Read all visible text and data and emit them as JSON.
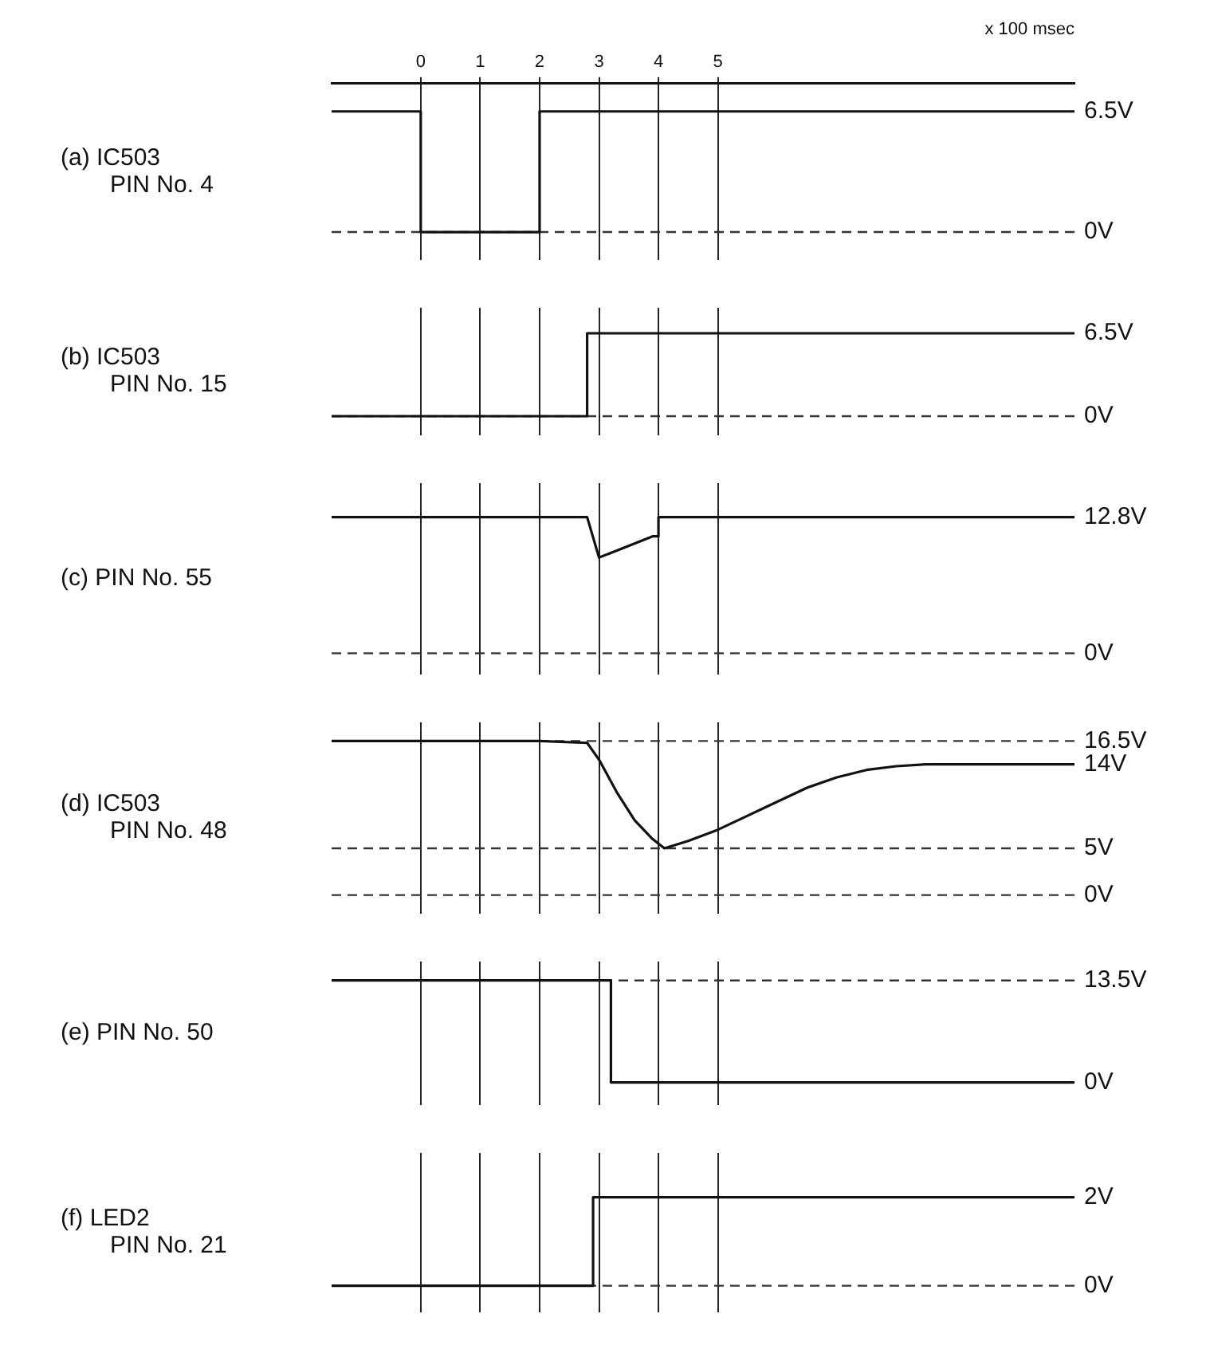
{
  "chart_data": [
    {
      "type": "line",
      "ylabel": "(a) IC503\nPIN No. 4",
      "xlabel": "x 100 msec",
      "xlim": [
        -1.5,
        11
      ],
      "xticks": [
        0,
        1,
        2,
        3,
        4,
        5
      ],
      "ylim": [
        -1.5,
        8
      ],
      "yticks": [
        {
          "value": 0,
          "label": "0V"
        },
        {
          "value": 6.5,
          "label": "6.5V"
        }
      ],
      "grid": "x",
      "marker": "none",
      "line_style": "solid",
      "ref_lines": [
        {
          "axis": "y",
          "value": 0,
          "line_style": "dashed"
        }
      ],
      "series": [
        {
          "color": "#111111",
          "x": [
            -1.5,
            0,
            0,
            2,
            2,
            11
          ],
          "values": [
            6.5,
            6.5,
            0,
            0,
            6.5,
            6.5
          ]
        }
      ]
    },
    {
      "type": "line",
      "ylabel": "(b) IC503\nPIN No. 15",
      "xlim": [
        -1.5,
        11
      ],
      "xticks": [
        0,
        1,
        2,
        3,
        4,
        5
      ],
      "ylim": [
        -1.5,
        8.5
      ],
      "yticks": [
        {
          "value": 0,
          "label": "0V"
        },
        {
          "value": 6.5,
          "label": "6.5V"
        }
      ],
      "grid": "x",
      "tick_labels": "y",
      "marker": "none",
      "line_style": "solid",
      "ref_lines": [
        {
          "axis": "y",
          "value": 0,
          "line_style": "dashed"
        }
      ],
      "series": [
        {
          "color": "#111111",
          "x": [
            -1.5,
            2.8,
            2.8,
            11
          ],
          "values": [
            0,
            0,
            6.5,
            6.5
          ]
        }
      ]
    },
    {
      "type": "line",
      "ylabel": "(c) PIN No. 55",
      "xlim": [
        -1.5,
        11
      ],
      "xticks": [
        0,
        1,
        2,
        3,
        4,
        5
      ],
      "ylim": [
        -2,
        16
      ],
      "yticks": [
        {
          "value": 0,
          "label": "0V"
        },
        {
          "value": 12.8,
          "label": "12.8V"
        }
      ],
      "grid": "x",
      "tick_labels": "y",
      "marker": "none",
      "line_style": "solid",
      "ref_lines": [
        {
          "axis": "y",
          "value": 0,
          "line_style": "dashed"
        }
      ],
      "series": [
        {
          "color": "#111111",
          "x": [
            -1.5,
            2.8,
            3.0,
            3.9,
            4.0,
            4.0,
            11
          ],
          "values": [
            12.8,
            12.8,
            9,
            11,
            11,
            12.8,
            12.8
          ]
        }
      ]
    },
    {
      "type": "line",
      "ylabel": "(d) IC503\nPIN No. 48",
      "xlim": [
        -1.5,
        11
      ],
      "xticks": [
        0,
        1,
        2,
        3,
        4,
        5
      ],
      "ylim": [
        -2,
        18.5
      ],
      "yticks": [
        {
          "value": 0,
          "label": "0V"
        },
        {
          "value": 5,
          "label": "5V"
        },
        {
          "value": 14,
          "label": "14V"
        },
        {
          "value": 16.5,
          "label": "16.5V"
        }
      ],
      "grid": "x",
      "tick_labels": "y",
      "marker": "none",
      "line_style": "solid",
      "ref_lines": [
        {
          "axis": "y",
          "value": 0,
          "line_style": "dashed"
        },
        {
          "axis": "y",
          "value": 5,
          "line_style": "dashed"
        },
        {
          "axis": "y",
          "value": 16.5,
          "line_style": "dashed"
        }
      ],
      "series": [
        {
          "color": "#111111",
          "x": [
            -1.5,
            2.0,
            2.8,
            3.0,
            3.3,
            3.6,
            3.9,
            4.1,
            4.5,
            5,
            5.5,
            6,
            6.5,
            7,
            7.5,
            8,
            8.5,
            11
          ],
          "values": [
            16.5,
            16.5,
            16.3,
            14.5,
            11,
            8,
            6,
            5,
            5.8,
            7,
            8.5,
            10,
            11.5,
            12.6,
            13.4,
            13.8,
            14,
            14
          ]
        }
      ]
    },
    {
      "type": "line",
      "ylabel": "(e) PIN No. 50",
      "xlim": [
        -1.5,
        11
      ],
      "xticks": [
        0,
        1,
        2,
        3,
        4,
        5
      ],
      "ylim": [
        -3,
        16
      ],
      "yticks": [
        {
          "value": 0,
          "label": "0V"
        },
        {
          "value": 13.5,
          "label": "13.5V"
        }
      ],
      "grid": "x",
      "tick_labels": "y",
      "marker": "none",
      "line_style": "solid",
      "ref_lines": [
        {
          "axis": "y",
          "value": 13.5,
          "line_style": "dashed"
        }
      ],
      "series": [
        {
          "color": "#111111",
          "x": [
            -1.5,
            3.2,
            3.2,
            11
          ],
          "values": [
            13.5,
            13.5,
            0,
            0
          ]
        }
      ]
    },
    {
      "type": "line",
      "ylabel": "(f) LED2\nPIN No. 21",
      "xlim": [
        -1.5,
        11
      ],
      "xticks": [
        0,
        1,
        2,
        3,
        4,
        5
      ],
      "ylim": [
        -0.6,
        3
      ],
      "yticks": [
        {
          "value": 0,
          "label": "0V"
        },
        {
          "value": 2,
          "label": "2V"
        }
      ],
      "grid": "x",
      "tick_labels": "y",
      "marker": "none",
      "line_style": "solid",
      "ref_lines": [
        {
          "axis": "y",
          "value": 0,
          "line_style": "dashed"
        }
      ],
      "series": [
        {
          "color": "#111111",
          "x": [
            -1.5,
            2.9,
            2.9,
            11
          ],
          "values": [
            0,
            0,
            2,
            2
          ]
        }
      ]
    }
  ]
}
